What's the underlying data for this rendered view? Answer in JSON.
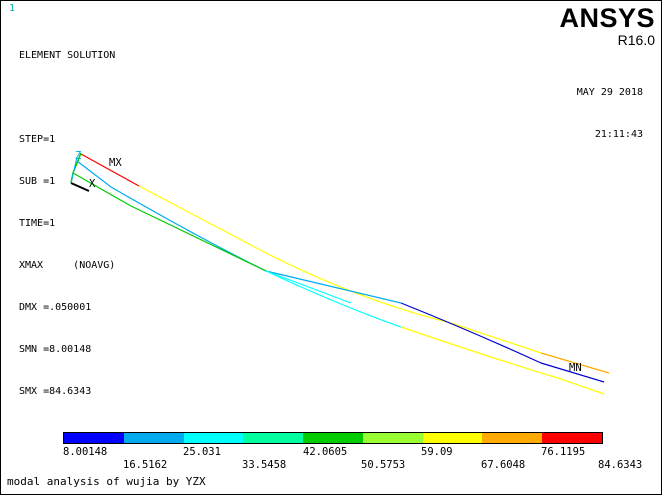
{
  "window_number": "1",
  "info_lines": [
    "ELEMENT SOLUTION",
    "",
    "STEP=1",
    "SUB =1",
    "TIME=1",
    "XMAX     (NOAVG)",
    "DMX =.050001",
    "SMN =8.00148",
    "SMX =84.6343"
  ],
  "brand": "ANSYS",
  "release": "R16.0",
  "date": "MAY 29 2018",
  "time": "21:11:43",
  "labels": {
    "max": "MX",
    "min": "MN",
    "axis_x": "X",
    "axis_z": "Z"
  },
  "colorbar": {
    "colors": [
      "#0000ff",
      "#00aaee",
      "#00ffff",
      "#00ff9e",
      "#00cc00",
      "#99ff33",
      "#ffff00",
      "#ffaa00",
      "#ff0000"
    ],
    "ticks_bottom": [
      "8.00148",
      "25.031",
      "42.0605",
      "59.09",
      "76.1195"
    ],
    "ticks_top": [
      "16.5162",
      "33.5458",
      "50.5753",
      "67.6048",
      "84.6343"
    ]
  },
  "caption": "modal analysis of wujia by YZX"
}
